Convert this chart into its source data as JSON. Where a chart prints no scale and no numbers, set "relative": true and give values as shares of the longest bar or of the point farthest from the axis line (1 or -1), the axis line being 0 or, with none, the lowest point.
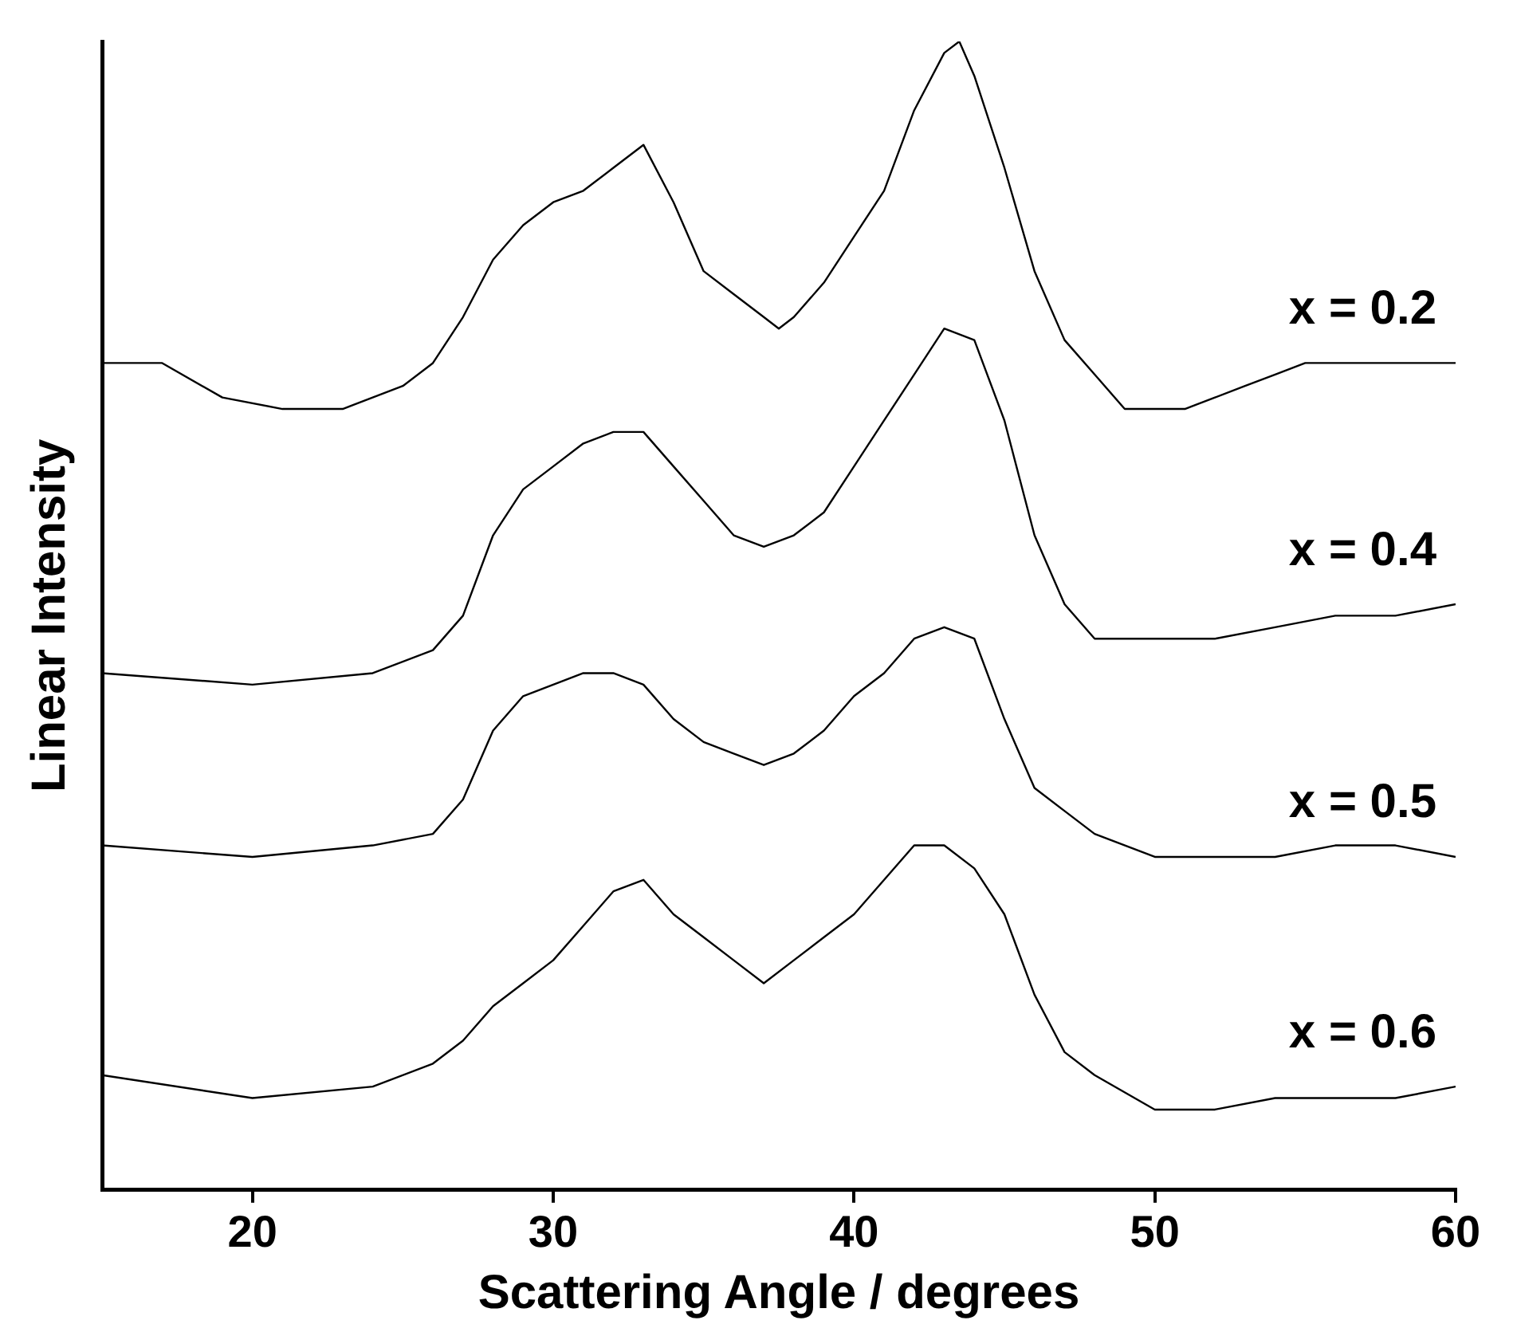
{
  "chart_data": {
    "type": "line",
    "xlabel": "Scattering Angle / degrees",
    "ylabel": "Linear Intensity",
    "relative": true,
    "xlim": [
      15,
      60
    ],
    "xticks": [
      20,
      30,
      40,
      50,
      60
    ],
    "grid": false,
    "legend": false,
    "marker": "none",
    "line_style": "solid",
    "series": [
      {
        "name": "x = 0.2",
        "color": "#000000",
        "x": [
          15,
          17,
          19,
          21,
          23,
          25,
          26,
          27,
          28,
          29,
          30,
          31,
          32,
          33,
          34,
          35,
          36,
          37,
          37.5,
          38,
          39,
          40,
          41,
          42,
          43,
          43.5,
          44,
          45,
          46,
          47,
          48,
          49,
          50,
          51,
          52,
          53,
          54,
          55,
          56,
          58,
          60
        ],
        "values": [
          0.72,
          0.72,
          0.69,
          0.68,
          0.68,
          0.7,
          0.72,
          0.76,
          0.81,
          0.84,
          0.86,
          0.87,
          0.89,
          0.91,
          0.86,
          0.8,
          0.78,
          0.76,
          0.75,
          0.76,
          0.79,
          0.83,
          0.87,
          0.94,
          0.99,
          1.0,
          0.97,
          0.89,
          0.8,
          0.74,
          0.71,
          0.68,
          0.68,
          0.68,
          0.69,
          0.7,
          0.71,
          0.72,
          0.72,
          0.72,
          0.72
        ]
      },
      {
        "name": "x = 0.4",
        "color": "#000000",
        "x": [
          15,
          20,
          24,
          26,
          27,
          28,
          29,
          30,
          31,
          32,
          33,
          34,
          35,
          36,
          37,
          38,
          39,
          40,
          41,
          42,
          43,
          44,
          45,
          46,
          47,
          48,
          50,
          52,
          54,
          56,
          58,
          60
        ],
        "values": [
          0.45,
          0.44,
          0.45,
          0.47,
          0.5,
          0.57,
          0.61,
          0.63,
          0.65,
          0.66,
          0.66,
          0.63,
          0.6,
          0.57,
          0.56,
          0.57,
          0.59,
          0.63,
          0.67,
          0.71,
          0.75,
          0.74,
          0.67,
          0.57,
          0.51,
          0.48,
          0.48,
          0.48,
          0.49,
          0.5,
          0.5,
          0.51
        ]
      },
      {
        "name": "x = 0.5",
        "color": "#000000",
        "x": [
          15,
          20,
          24,
          26,
          27,
          28,
          29,
          30,
          31,
          32,
          33,
          34,
          35,
          36,
          37,
          38,
          39,
          40,
          41,
          42,
          43,
          44,
          45,
          46,
          47,
          48,
          50,
          52,
          54,
          56,
          58,
          60
        ],
        "values": [
          0.3,
          0.29,
          0.3,
          0.31,
          0.34,
          0.4,
          0.43,
          0.44,
          0.45,
          0.45,
          0.44,
          0.41,
          0.39,
          0.38,
          0.37,
          0.38,
          0.4,
          0.43,
          0.45,
          0.48,
          0.49,
          0.48,
          0.41,
          0.35,
          0.33,
          0.31,
          0.29,
          0.29,
          0.29,
          0.3,
          0.3,
          0.29
        ]
      },
      {
        "name": "x = 0.6",
        "color": "#000000",
        "x": [
          15,
          20,
          24,
          26,
          27,
          28,
          29,
          30,
          31,
          32,
          33,
          34,
          35,
          36,
          37,
          38,
          39,
          40,
          41,
          42,
          43,
          44,
          45,
          46,
          47,
          48,
          50,
          52,
          54,
          56,
          58,
          60
        ],
        "values": [
          0.1,
          0.08,
          0.09,
          0.11,
          0.13,
          0.16,
          0.18,
          0.2,
          0.23,
          0.26,
          0.27,
          0.24,
          0.22,
          0.2,
          0.18,
          0.2,
          0.22,
          0.24,
          0.27,
          0.3,
          0.3,
          0.28,
          0.24,
          0.17,
          0.12,
          0.1,
          0.07,
          0.07,
          0.08,
          0.08,
          0.08,
          0.09
        ]
      }
    ]
  }
}
